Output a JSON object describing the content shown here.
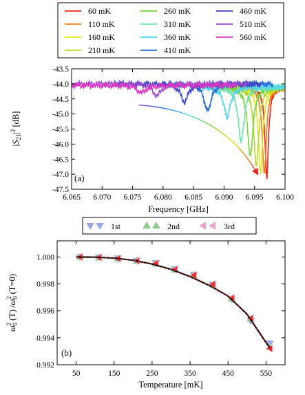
{
  "chart_data": [
    {
      "type": "line",
      "panel_label": "(a)",
      "xlabel": "Frequency [GHz]",
      "ylabel": "|S21|² [dB]",
      "ylabel_parts": {
        "open": "|",
        "s": "S",
        "sub": "21",
        "close": "|",
        "sup": "2",
        "unit": " [dB]"
      },
      "xlim": [
        6.065,
        6.1
      ],
      "ylim": [
        -47.5,
        -43.5
      ],
      "x_ticks": [
        "6.065",
        "6.070",
        "6.075",
        "6.080",
        "6.085",
        "6.090",
        "6.095",
        "6.100"
      ],
      "x_tick_values": [
        6.065,
        6.07,
        6.075,
        6.08,
        6.085,
        6.09,
        6.095,
        6.1
      ],
      "y_ticks": [
        "-43.5",
        "-44.0",
        "-44.5",
        "-45.0",
        "-45.5",
        "-46.0",
        "-46.5",
        "-47.0",
        "-47.5"
      ],
      "y_tick_values": [
        -43.5,
        -44.0,
        -44.5,
        -45.0,
        -45.5,
        -46.0,
        -46.5,
        -47.0,
        -47.5
      ],
      "grid": false,
      "legend_placement": "above plot",
      "series": [
        {
          "name": "60 mK",
          "color": "#e8231e",
          "resonance_x": 6.097,
          "dip_min_y": -47.1,
          "baseline_y": -44.1,
          "x_range": [
            6.0915,
            6.1
          ]
        },
        {
          "name": "110 mK",
          "color": "#f07f13",
          "resonance_x": 6.0966,
          "dip_min_y": -47.0,
          "baseline_y": -44.1,
          "x_range": [
            6.091,
            6.1
          ]
        },
        {
          "name": "160 mK",
          "color": "#e3e614",
          "resonance_x": 6.096,
          "dip_min_y": -46.9,
          "baseline_y": -44.1,
          "x_range": [
            6.0905,
            6.1
          ]
        },
        {
          "name": "210 mK",
          "color": "#b5d931",
          "resonance_x": 6.0953,
          "dip_min_y": -46.7,
          "baseline_y": -44.1,
          "x_range": [
            6.09,
            6.1
          ]
        },
        {
          "name": "260 mK",
          "color": "#7ad63a",
          "resonance_x": 6.0943,
          "dip_min_y": -46.4,
          "baseline_y": -44.1,
          "x_range": [
            6.089,
            6.1
          ]
        },
        {
          "name": "310 mK",
          "color": "#6fe6a9",
          "resonance_x": 6.0928,
          "dip_min_y": -45.9,
          "baseline_y": -44.1,
          "x_range": [
            6.088,
            6.1
          ]
        },
        {
          "name": "360 mK",
          "color": "#54d6e8",
          "resonance_x": 6.0905,
          "dip_min_y": -45.1,
          "baseline_y": -44.1,
          "x_range": [
            6.086,
            6.1
          ]
        },
        {
          "name": "410 mK",
          "color": "#2f6fd6",
          "resonance_x": 6.0873,
          "dip_min_y": -44.9,
          "baseline_y": -44.0,
          "x_range": [
            6.08,
            6.098
          ]
        },
        {
          "name": "460 mK",
          "color": "#3b42c6",
          "resonance_x": 6.0835,
          "dip_min_y": -44.6,
          "baseline_y": -44.0,
          "x_range": [
            6.072,
            6.096
          ]
        },
        {
          "name": "510 mK",
          "color": "#9a49cf",
          "resonance_x": 6.079,
          "dip_min_y": -44.4,
          "baseline_y": -44.0,
          "x_range": [
            6.065,
            6.094
          ]
        },
        {
          "name": "560 mK",
          "color": "#e433c2",
          "resonance_x": 6.0765,
          "dip_min_y": -44.3,
          "baseline_y": -44.05,
          "x_range": [
            6.065,
            6.092
          ]
        }
      ],
      "annotation_arrow": {
        "from": [
          6.076,
          -44.7
        ],
        "to": [
          6.0955,
          -47.0
        ],
        "colors": [
          "#9a49cf",
          "#2f6fd6",
          "#54d6e8",
          "#7ad63a",
          "#e3e614",
          "#e8231e"
        ]
      }
    },
    {
      "type": "scatter",
      "panel_label": "(b)",
      "xlabel": "Temperature [mK]",
      "ylabel": "ω0²(T)/ω0²(T=0)",
      "ylabel_parts": {
        "w1": "ω",
        "sub1": "0",
        "sup1": "2",
        "mid": " (T) /",
        "w2": "ω",
        "sub2": "0",
        "sup2": "2",
        "end": " (T=0)"
      },
      "xlim": [
        0,
        600
      ],
      "ylim": [
        0.992,
        1.0012
      ],
      "x_ticks": [
        "50",
        "150",
        "250",
        "350",
        "450",
        "550"
      ],
      "x_tick_values": [
        50,
        150,
        250,
        350,
        450,
        550
      ],
      "y_ticks": [
        "1.000",
        "0.998",
        "0.996",
        "0.994",
        "0.992"
      ],
      "y_tick_values": [
        1.0,
        0.998,
        0.996,
        0.994,
        0.992
      ],
      "grid": false,
      "legend_placement": "above plot",
      "x": [
        60,
        110,
        160,
        210,
        260,
        310,
        360,
        410,
        460,
        510,
        560
      ],
      "series": [
        {
          "name": "1st",
          "marker": "triangle-down",
          "color": "#9ba8e8",
          "values": [
            1.0,
            0.99998,
            0.9999,
            0.99972,
            0.99955,
            0.9991,
            0.99868,
            0.99795,
            0.99685,
            0.99525,
            0.9936
          ]
        },
        {
          "name": "2nd",
          "marker": "triangle-up",
          "color": "#8fc98c",
          "values": [
            1.0,
            0.99995,
            0.99988,
            0.9997,
            0.9995,
            0.99905,
            0.99865,
            0.99795,
            0.9969,
            0.9954,
            0.9933
          ]
        },
        {
          "name": "3rd",
          "marker": "triangle-left",
          "color": "#e6a3c4",
          "values": [
            1.0,
            0.99997,
            0.99989,
            0.99972,
            0.99953,
            0.99908,
            0.99866,
            0.99798,
            0.99695,
            0.99545,
            0.9932
          ]
        }
      ],
      "fit_curve": {
        "color": "#000000",
        "overlay_color": "#e8231e",
        "x": [
          50,
          100,
          150,
          200,
          250,
          300,
          350,
          400,
          450,
          500,
          550,
          560
        ],
        "y": [
          1.0,
          0.99999,
          0.99992,
          0.99976,
          0.99948,
          0.99908,
          0.99855,
          0.9979,
          0.9971,
          0.99575,
          0.99365,
          0.99325
        ]
      }
    }
  ]
}
